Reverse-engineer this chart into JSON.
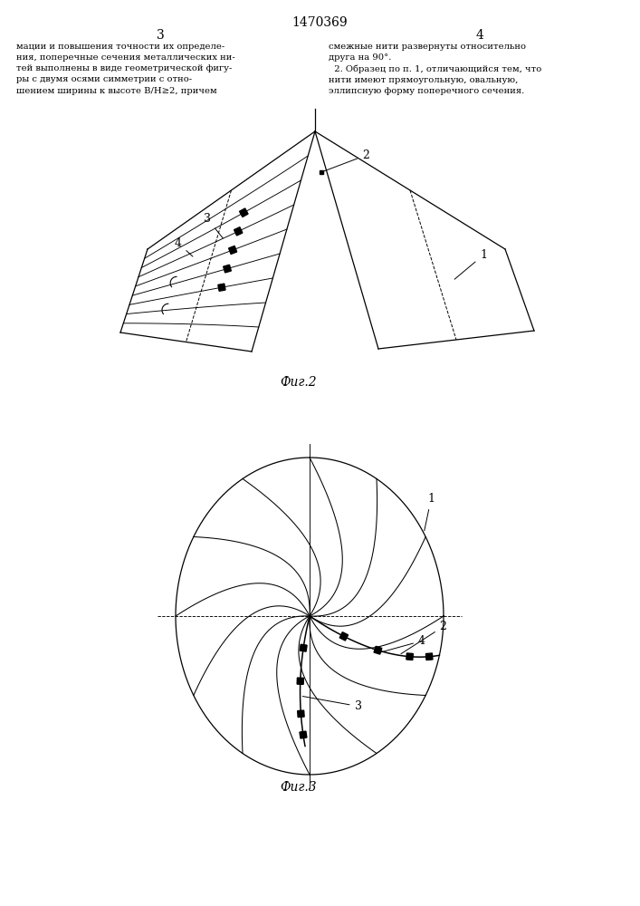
{
  "title": "1470369",
  "fig2_caption": "Фиг.2",
  "fig3_caption": "Фиг.3",
  "background_color": "#ffffff",
  "line_color": "#000000"
}
